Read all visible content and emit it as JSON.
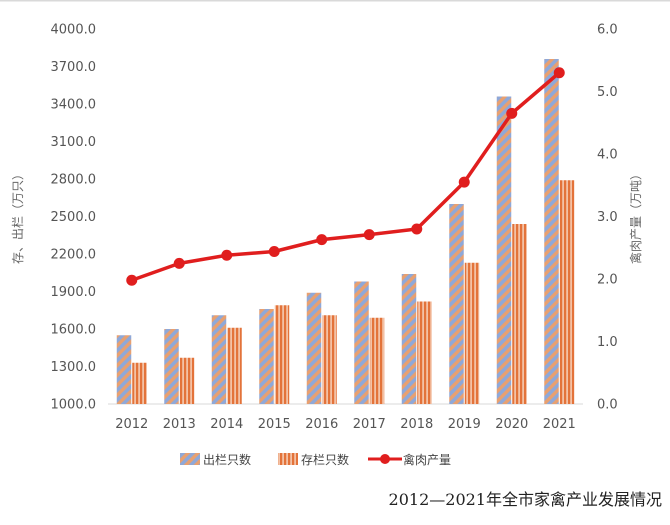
{
  "chart_data": {
    "type": "bar",
    "title": "",
    "caption": "2012—2021年全市家禽产业发展情况",
    "categories": [
      "2012",
      "2013",
      "2014",
      "2015",
      "2016",
      "2017",
      "2018",
      "2019",
      "2020",
      "2021"
    ],
    "y_left": {
      "label": "存、出栏（万只）",
      "ylim": [
        1000,
        4000
      ],
      "ticks": [
        "1000.0",
        "1300.0",
        "1600.0",
        "1900.0",
        "2200.0",
        "2500.0",
        "2800.0",
        "3100.0",
        "3400.0",
        "3700.0",
        "4000.0"
      ]
    },
    "y_right": {
      "label": "禽肉产量（万吨）",
      "ylim": [
        0,
        6
      ],
      "ticks": [
        "0.0",
        "1.0",
        "2.0",
        "3.0",
        "4.0",
        "5.0",
        "6.0"
      ]
    },
    "series": [
      {
        "name": "出栏只数",
        "kind": "bar",
        "axis": "left",
        "pattern": "diagonal-stripes",
        "colors": [
          "#8fa8d8",
          "#e8a070"
        ],
        "values": [
          1550,
          1600,
          1710,
          1760,
          1890,
          1980,
          2040,
          2600,
          3460,
          3760
        ]
      },
      {
        "name": "存栏只数",
        "kind": "bar",
        "axis": "left",
        "pattern": "vertical-stripes",
        "colors": [
          "#e3733a",
          "#f3c2a6"
        ],
        "values": [
          1330,
          1370,
          1610,
          1790,
          1710,
          1690,
          1820,
          2130,
          2440,
          2790
        ]
      },
      {
        "name": "禽肉产量",
        "kind": "line",
        "axis": "right",
        "color": "#e01e1e",
        "values": [
          1.98,
          2.25,
          2.38,
          2.44,
          2.63,
          2.71,
          2.8,
          3.55,
          4.65,
          5.3
        ]
      }
    ],
    "legend_position": "bottom",
    "grid": false
  }
}
